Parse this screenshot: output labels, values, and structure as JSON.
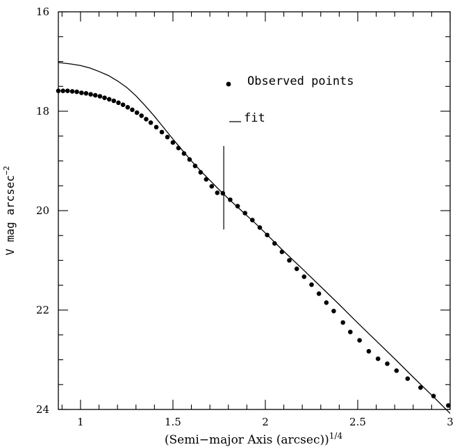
{
  "chart_data": {
    "type": "scatter",
    "title": "",
    "xlabel_main": "(Semi−major Axis (arcsec))",
    "xlabel_exp": "1/4",
    "ylabel_main": "V mag arcsec",
    "ylabel_exp": "−2",
    "xlim": [
      0.88,
      3.0
    ],
    "ylim": [
      16,
      24
    ],
    "y_inverted": true,
    "xticks": [
      {
        "value": 1,
        "label": "1"
      },
      {
        "value": 1.5,
        "label": "1.5"
      },
      {
        "value": 2,
        "label": "2"
      },
      {
        "value": 2.5,
        "label": "2.5"
      },
      {
        "value": 3,
        "label": "3"
      }
    ],
    "yticks": [
      {
        "value": 16,
        "label": "16"
      },
      {
        "value": 18,
        "label": "18"
      },
      {
        "value": 20,
        "label": "20"
      },
      {
        "value": 22,
        "label": "22"
      },
      {
        "value": 24,
        "label": "24"
      }
    ],
    "grid": false,
    "legend": {
      "placement": "top-right",
      "entries": [
        {
          "label": "Observed points",
          "marker": "dot"
        },
        {
          "label": "fit",
          "marker": "line"
        }
      ]
    },
    "series": [
      {
        "name": "Observed points",
        "kind": "points",
        "x": [
          0.88,
          0.905,
          0.93,
          0.955,
          0.98,
          1.005,
          1.03,
          1.055,
          1.08,
          1.105,
          1.13,
          1.155,
          1.18,
          1.205,
          1.23,
          1.255,
          1.28,
          1.305,
          1.33,
          1.355,
          1.38,
          1.41,
          1.44,
          1.47,
          1.5,
          1.53,
          1.56,
          1.59,
          1.62,
          1.65,
          1.68,
          1.71,
          1.74,
          1.77,
          1.81,
          1.85,
          1.89,
          1.93,
          1.97,
          2.01,
          2.05,
          2.09,
          2.13,
          2.17,
          2.21,
          2.25,
          2.29,
          2.33,
          2.37,
          2.42,
          2.46,
          2.51,
          2.56,
          2.61,
          2.66,
          2.71,
          2.77,
          2.84,
          2.91,
          2.99
        ],
        "y": [
          17.59,
          17.59,
          17.59,
          17.6,
          17.61,
          17.63,
          17.64,
          17.66,
          17.68,
          17.7,
          17.73,
          17.76,
          17.79,
          17.83,
          17.87,
          17.92,
          17.97,
          18.03,
          18.09,
          18.16,
          18.23,
          18.32,
          18.42,
          18.52,
          18.63,
          18.74,
          18.85,
          18.97,
          19.1,
          19.23,
          19.37,
          19.51,
          19.64,
          19.65,
          19.78,
          19.91,
          20.05,
          20.19,
          20.34,
          20.49,
          20.66,
          20.83,
          21.0,
          21.17,
          21.33,
          21.49,
          21.67,
          21.85,
          22.02,
          22.25,
          22.44,
          22.61,
          22.83,
          22.98,
          23.08,
          23.22,
          23.38,
          23.56,
          23.73,
          23.92
        ]
      },
      {
        "name": "fit",
        "kind": "line",
        "x": [
          0.88,
          0.95,
          1.0,
          1.05,
          1.1,
          1.15,
          1.2,
          1.25,
          1.3,
          1.35,
          1.4,
          1.45,
          1.5,
          1.55,
          1.6,
          1.65,
          1.7,
          1.75,
          1.8,
          1.85,
          1.9,
          1.95,
          2.0,
          2.1,
          2.2,
          2.3,
          2.4,
          2.5,
          2.6,
          2.7,
          2.8,
          2.9,
          3.0
        ],
        "y": [
          17.02,
          17.05,
          17.08,
          17.13,
          17.2,
          17.28,
          17.39,
          17.52,
          17.69,
          17.89,
          18.1,
          18.33,
          18.56,
          18.78,
          19.0,
          19.2,
          19.39,
          19.58,
          19.76,
          19.93,
          20.1,
          20.27,
          20.45,
          20.82,
          21.17,
          21.53,
          21.89,
          22.26,
          22.62,
          22.98,
          23.35,
          23.71,
          24.08
        ]
      },
      {
        "name": "",
        "kind": "vertical-marker",
        "x": [
          1.775,
          1.775
        ],
        "y": [
          18.7,
          20.38
        ]
      }
    ]
  }
}
